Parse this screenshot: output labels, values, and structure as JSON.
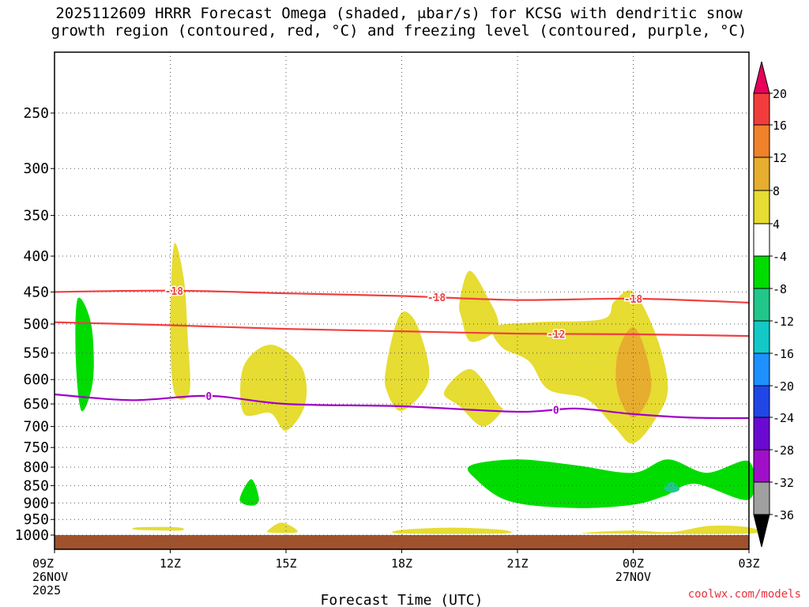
{
  "title": {
    "line1": "2025112609 HRRR Forecast Omega (shaded, μbar/s) for KCSG with dendritic snow",
    "line2": "growth region (contoured, red, °C) and freezing level (contoured, purple, °C)"
  },
  "credit": "coolwx.com/models",
  "chart_data": {
    "type": "time-height cross-section",
    "xlabel": "Forecast Time (UTC)",
    "x_ticks": [
      {
        "hour": 0,
        "lines": [
          "09Z",
          "26NOV",
          "2025"
        ]
      },
      {
        "hour": 3,
        "lines": [
          "12Z"
        ]
      },
      {
        "hour": 6,
        "lines": [
          "15Z"
        ]
      },
      {
        "hour": 9,
        "lines": [
          "18Z"
        ]
      },
      {
        "hour": 12,
        "lines": [
          "21Z"
        ]
      },
      {
        "hour": 15,
        "lines": [
          "00Z",
          "27NOV"
        ]
      },
      {
        "hour": 18,
        "lines": [
          "03Z"
        ]
      }
    ],
    "x_range_hours": [
      0,
      18
    ],
    "y_ticks": [
      250,
      300,
      350,
      400,
      450,
      500,
      550,
      600,
      650,
      700,
      750,
      800,
      850,
      900,
      950,
      1000
    ],
    "y_range_hPa": [
      1025,
      200
    ],
    "colorbar": {
      "labels": [
        20,
        16,
        12,
        8,
        4,
        -4,
        -8,
        -12,
        -16,
        -20,
        -24,
        -28,
        -32,
        -36
      ],
      "colors": [
        "#e8005a",
        "#f23c3c",
        "#f0822a",
        "#e6ad2f",
        "#e6dc32",
        "#ffffff",
        "#00dc00",
        "#21c78a",
        "#14c8c8",
        "#1e90ff",
        "#2046e6",
        "#6a0ad0",
        "#a00fc8",
        "#a0a0a0",
        "#000000"
      ]
    },
    "shaded_regions": [
      {
        "omega": -8,
        "color": "#00dc00",
        "label": "ascent",
        "pts": [
          [
            0.6,
            460
          ],
          [
            0.95,
            500
          ],
          [
            1.0,
            600
          ],
          [
            0.7,
            665
          ],
          [
            0.55,
            560
          ]
        ]
      },
      {
        "omega": 4,
        "color": "#e6dc32",
        "label": "descent",
        "pts": [
          [
            3.1,
            385
          ],
          [
            3.35,
            430
          ],
          [
            3.45,
            520
          ],
          [
            3.5,
            625
          ],
          [
            3.1,
            625
          ],
          [
            3.0,
            500
          ]
        ]
      },
      {
        "omega": 4,
        "color": "#e6dc32",
        "label": "descent",
        "pts": [
          [
            4.9,
            575
          ],
          [
            5.6,
            535
          ],
          [
            6.4,
            575
          ],
          [
            6.5,
            650
          ],
          [
            6.0,
            710
          ],
          [
            5.6,
            670
          ],
          [
            4.9,
            670
          ]
        ]
      },
      {
        "omega": 4,
        "color": "#e6dc32",
        "label": "descent",
        "pts": [
          [
            8.6,
            575
          ],
          [
            8.85,
            500
          ],
          [
            9.1,
            480
          ],
          [
            9.45,
            510
          ],
          [
            9.7,
            600
          ],
          [
            9.0,
            665
          ],
          [
            8.6,
            620
          ]
        ]
      },
      {
        "omega": 4,
        "color": "#e6dc32",
        "label": "descent",
        "pts": [
          [
            10.5,
            465
          ],
          [
            10.75,
            420
          ],
          [
            11.2,
            455
          ],
          [
            11.5,
            505
          ],
          [
            10.8,
            530
          ],
          [
            10.55,
            490
          ]
        ]
      },
      {
        "omega": 4,
        "color": "#e6dc32",
        "label": "descent",
        "pts": [
          [
            10.1,
            625
          ],
          [
            10.8,
            580
          ],
          [
            11.5,
            650
          ],
          [
            11.6,
            665
          ],
          [
            11.1,
            700
          ],
          [
            10.5,
            655
          ]
        ]
      },
      {
        "omega": 4,
        "color": "#e6dc32",
        "label": "descent",
        "pts": [
          [
            11.4,
            505
          ],
          [
            12.5,
            497
          ],
          [
            14.2,
            492
          ],
          [
            14.5,
            465
          ],
          [
            15.0,
            450
          ],
          [
            15.6,
            520
          ],
          [
            15.9,
            615
          ],
          [
            15.6,
            680
          ],
          [
            15.0,
            740
          ],
          [
            14.5,
            700
          ],
          [
            13.8,
            640
          ],
          [
            12.8,
            620
          ],
          [
            12.3,
            565
          ],
          [
            11.6,
            540
          ]
        ]
      },
      {
        "omega": 8,
        "color": "#e6ad2f",
        "label": "descent",
        "pts": [
          [
            14.6,
            550
          ],
          [
            15.0,
            505
          ],
          [
            15.35,
            555
          ],
          [
            15.45,
            625
          ],
          [
            15.0,
            680
          ],
          [
            14.6,
            625
          ]
        ]
      },
      {
        "omega": -8,
        "color": "#00dc00",
        "label": "ascent",
        "pts": [
          [
            10.8,
            795
          ],
          [
            12.0,
            780
          ],
          [
            13.5,
            795
          ],
          [
            15.0,
            815
          ],
          [
            15.9,
            780
          ],
          [
            16.9,
            815
          ],
          [
            18.0,
            785
          ],
          [
            18.0,
            890
          ],
          [
            16.6,
            845
          ],
          [
            15.8,
            880
          ],
          [
            15.0,
            905
          ],
          [
            13.5,
            915
          ],
          [
            11.8,
            895
          ],
          [
            10.9,
            830
          ]
        ]
      },
      {
        "omega": -12,
        "color": "#21c78a",
        "label": "ascent",
        "pts": [
          [
            15.8,
            858
          ],
          [
            16.0,
            840
          ],
          [
            16.2,
            860
          ],
          [
            16.0,
            870
          ]
        ]
      },
      {
        "omega": -8,
        "color": "#00dc00",
        "label": "ascent",
        "pts": [
          [
            4.8,
            890
          ],
          [
            5.1,
            832
          ],
          [
            5.3,
            890
          ],
          [
            5.1,
            908
          ]
        ]
      },
      {
        "omega": 4,
        "color": "#e6dc32",
        "label": "descent",
        "pts": [
          [
            2.15,
            975
          ],
          [
            3.2,
            975
          ],
          [
            3.25,
            985
          ],
          [
            2.15,
            983
          ]
        ]
      },
      {
        "omega": 4,
        "color": "#e6dc32",
        "label": "descent",
        "pts": [
          [
            5.55,
            983
          ],
          [
            5.9,
            960
          ],
          [
            6.3,
            990
          ],
          [
            5.6,
            992
          ]
        ]
      },
      {
        "omega": 4,
        "color": "#e6dc32",
        "label": "descent",
        "pts": [
          [
            9.0,
            983
          ],
          [
            10.3,
            976
          ],
          [
            11.6,
            983
          ],
          [
            11.6,
            995
          ],
          [
            9.0,
            995
          ]
        ]
      },
      {
        "omega": 4,
        "color": "#e6dc32",
        "label": "descent",
        "pts": [
          [
            14.0,
            990
          ],
          [
            15.0,
            985
          ],
          [
            16.0,
            990
          ],
          [
            17.0,
            970
          ],
          [
            18.0,
            975
          ],
          [
            18.0,
            995
          ],
          [
            14.0,
            995
          ]
        ]
      }
    ],
    "ground": {
      "color": "#a0522d",
      "from_hPa": 1000,
      "to_hPa": 1025
    },
    "contours": [
      {
        "name": "dendritic -18C",
        "color": "#f04040",
        "label": "-18",
        "label_hours": [
          3.1,
          9.9,
          15.0
        ],
        "pts": [
          [
            0,
            450
          ],
          [
            3,
            448
          ],
          [
            6,
            452
          ],
          [
            9,
            456
          ],
          [
            12,
            462
          ],
          [
            15,
            460
          ],
          [
            18,
            466
          ]
        ]
      },
      {
        "name": "dendritic -12C",
        "color": "#f04040",
        "label": "-12",
        "label_hours": [
          13.0
        ],
        "pts": [
          [
            0,
            497
          ],
          [
            3,
            502
          ],
          [
            6,
            508
          ],
          [
            9,
            512
          ],
          [
            12,
            516
          ],
          [
            15,
            517
          ],
          [
            18,
            520
          ]
        ]
      },
      {
        "name": "freezing level 0C",
        "color": "#a000c8",
        "label": "0",
        "label_hours": [
          4.0,
          13.0
        ],
        "pts": [
          [
            0,
            630
          ],
          [
            2,
            642
          ],
          [
            4,
            633
          ],
          [
            6,
            650
          ],
          [
            9,
            655
          ],
          [
            12,
            667
          ],
          [
            13.5,
            660
          ],
          [
            15,
            672
          ],
          [
            16.5,
            680
          ],
          [
            18,
            681
          ]
        ]
      }
    ]
  }
}
